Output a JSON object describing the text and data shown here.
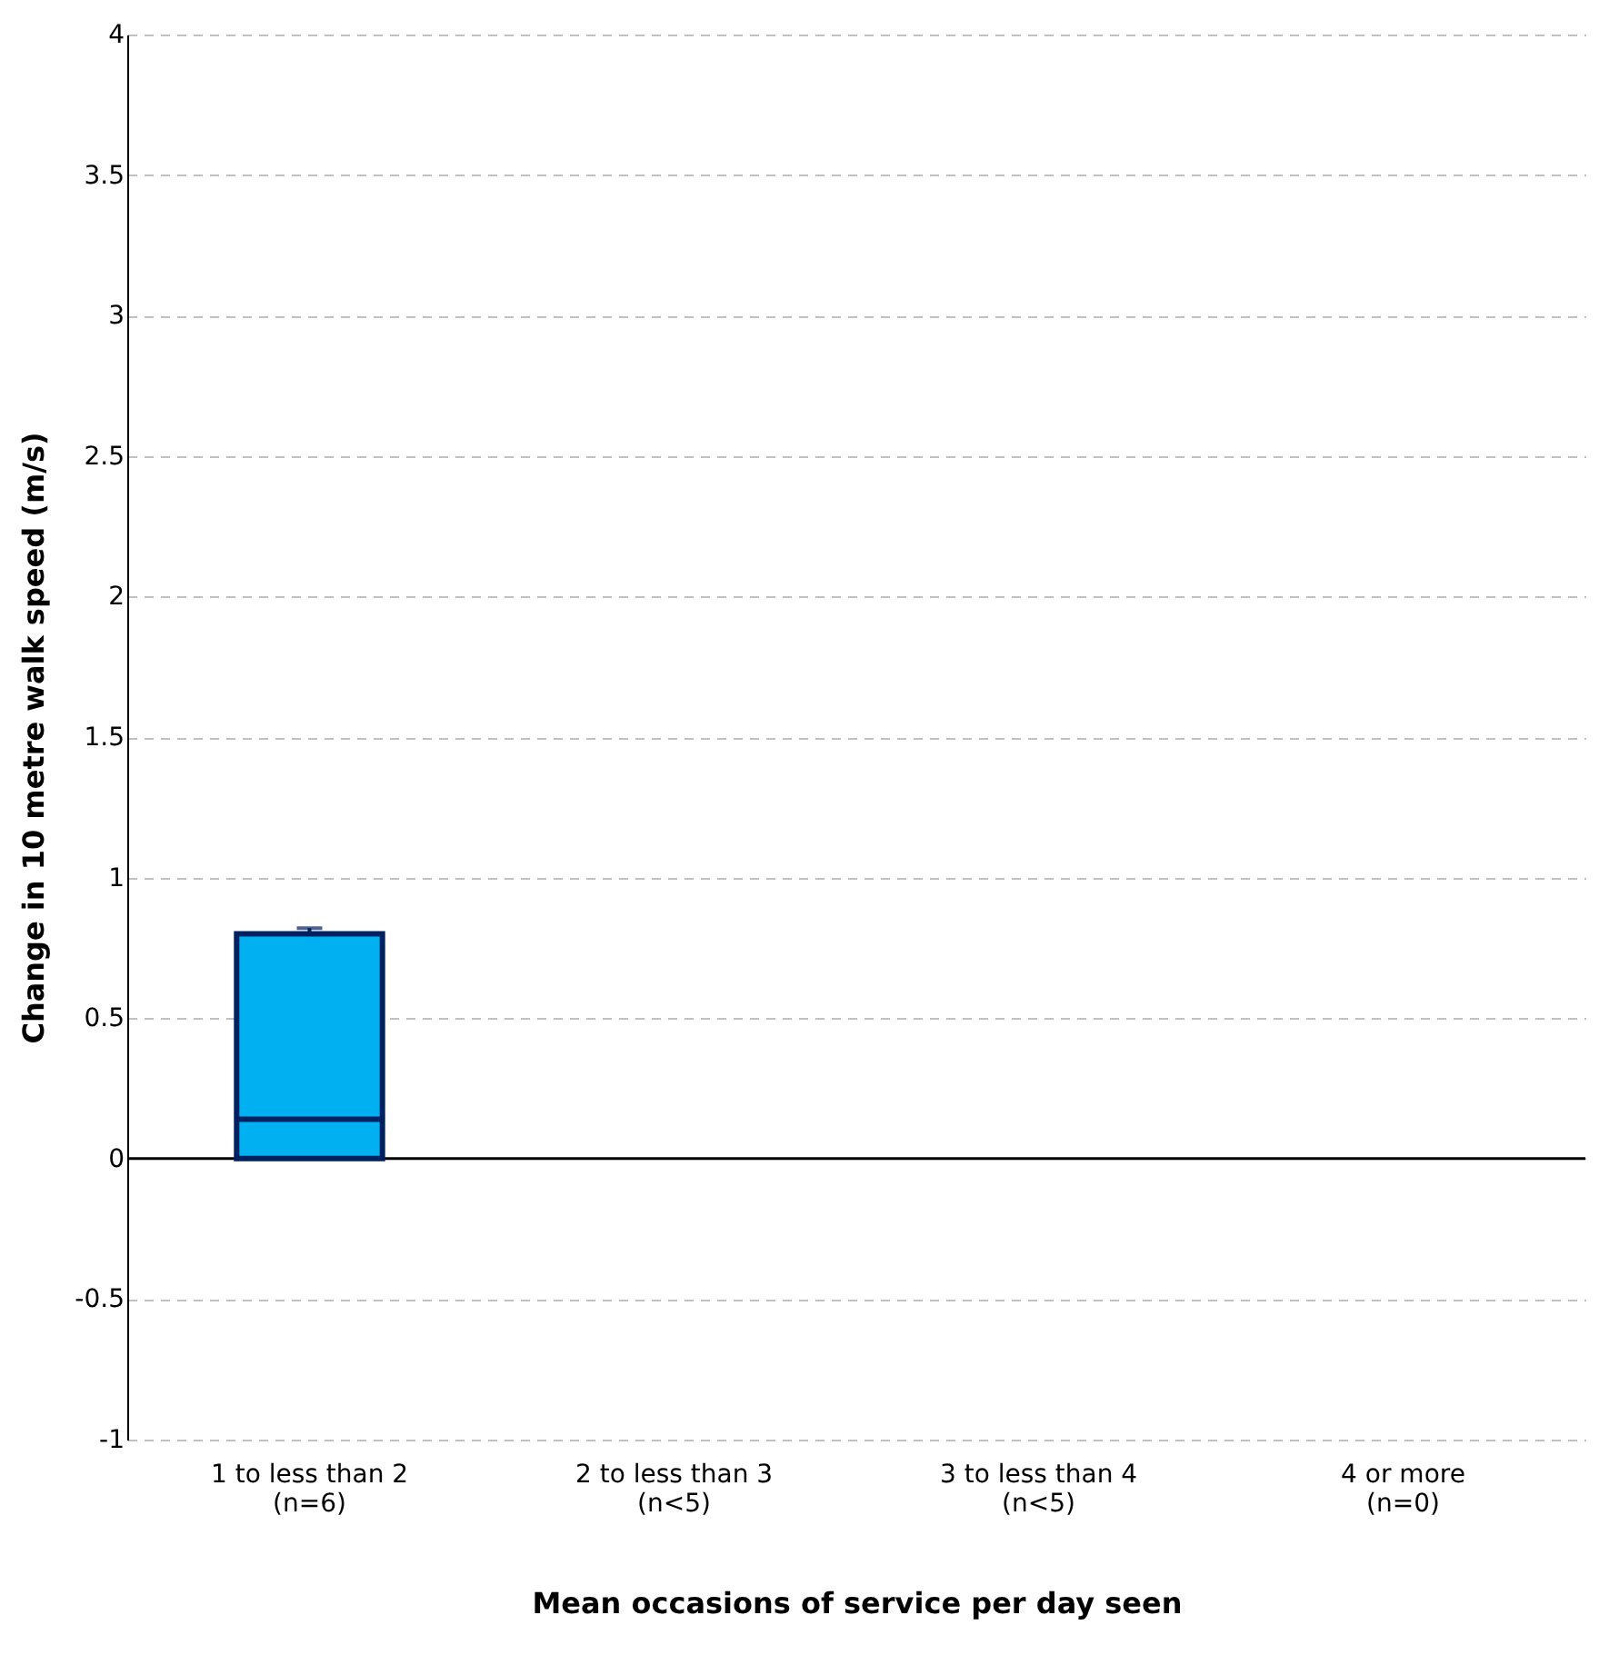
{
  "chart_data": {
    "type": "box",
    "xlabel": "Mean occasions of service per day seen",
    "ylabel": "Change in 10 metre walk speed (m/s)",
    "categories": [
      "1 to less than 2\n(n=6)",
      "2 to less than 3\n(n<5)",
      "3 to less than 4\n(n<5)",
      "4 or more\n(n=0)"
    ],
    "series": [
      {
        "color": "#00b0f0",
        "boxes": [
          {
            "low": 0,
            "q1": 0,
            "median": 0.14,
            "q3": 0.8,
            "high": 0.82
          },
          null,
          null,
          null
        ]
      }
    ],
    "ylim": [
      -1,
      4
    ],
    "yticks": [
      -1,
      -0.5,
      0,
      0.5,
      1,
      1.5,
      2,
      2.5,
      3,
      3.5,
      4
    ],
    "grid": "y",
    "ref_lines": [
      {
        "axis": "y",
        "value": 0,
        "color": "#000000"
      }
    ]
  }
}
